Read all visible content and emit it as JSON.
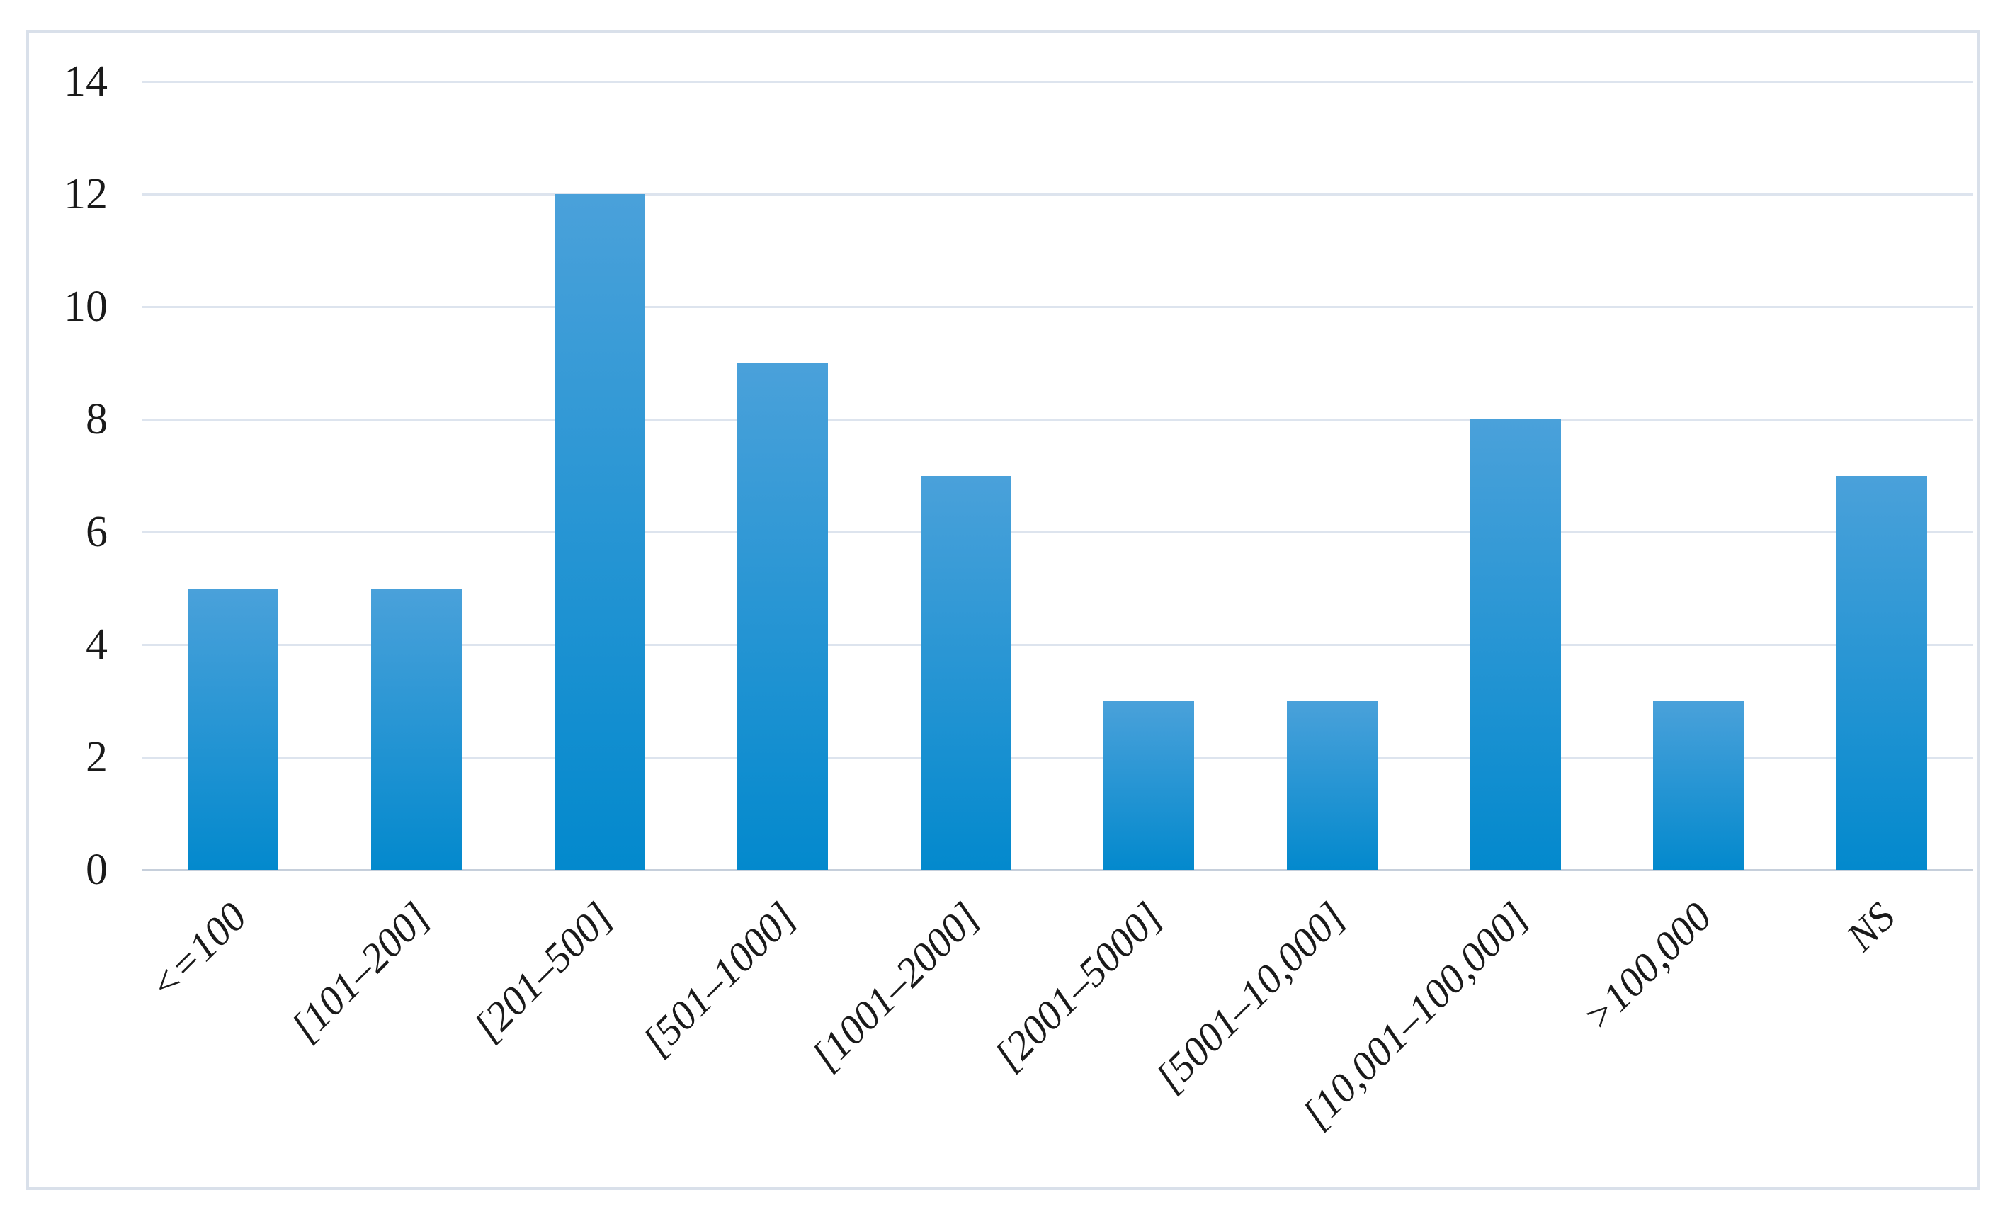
{
  "figure": {
    "background": "#ffffff",
    "frame_border_color": "#d9e0ea"
  },
  "chart_data": {
    "type": "bar",
    "title": "",
    "xlabel": "",
    "ylabel": "",
    "categories": [
      "<=100",
      "[101–200]",
      "[201–500]",
      "[501–1000]",
      "[1001–2000]",
      "[2001–5000]",
      "[5001–10,000]",
      "[10,001–100,000]",
      ">100,000",
      "NS"
    ],
    "values": [
      5,
      5,
      12,
      9,
      7,
      3,
      3,
      8,
      3,
      7
    ],
    "ylim": [
      0,
      14
    ],
    "yticks": [
      0,
      2,
      4,
      6,
      8,
      10,
      12,
      14
    ],
    "grid": true,
    "legend": false,
    "colors": {
      "bar_gradient_top": "#4aa1da",
      "bar_gradient_bottom": "#0389cd",
      "gridline": "#dde4ee",
      "axis_baseline": "#c6cfdb",
      "tick_label": "#1a1a1a"
    }
  }
}
